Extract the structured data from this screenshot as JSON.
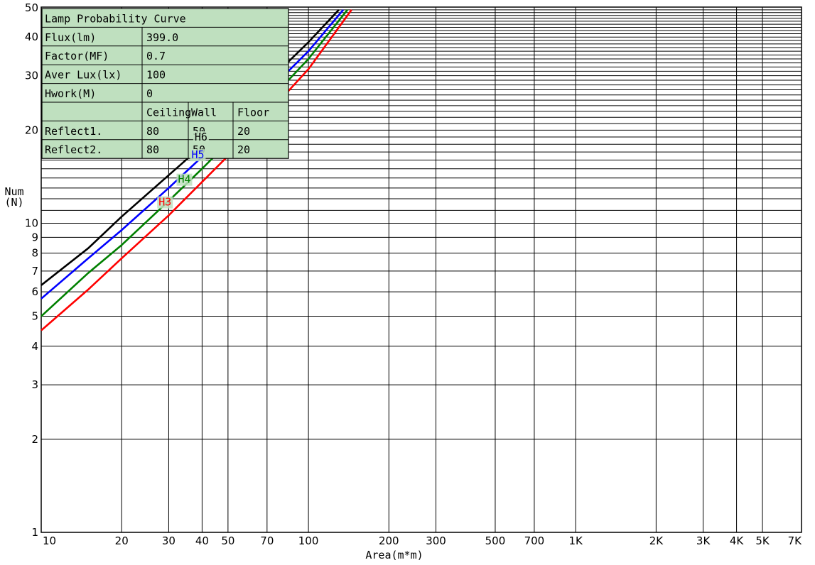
{
  "chart_data": {
    "type": "line",
    "x_scale": "log",
    "y_scale": "log",
    "xlim": [
      10,
      7000
    ],
    "ylim": [
      1,
      50
    ],
    "grid": true,
    "xlabel": "Area(m*m)",
    "ylabel_line1": "Num",
    "ylabel_line2": "(N)",
    "x_ticks": [
      {
        "value": 10,
        "label": "10"
      },
      {
        "value": 20,
        "label": "20"
      },
      {
        "value": 30,
        "label": "30"
      },
      {
        "value": 40,
        "label": "40"
      },
      {
        "value": 50,
        "label": "50"
      },
      {
        "value": 70,
        "label": "70"
      },
      {
        "value": 100,
        "label": "100"
      },
      {
        "value": 200,
        "label": "200"
      },
      {
        "value": 300,
        "label": "300"
      },
      {
        "value": 500,
        "label": "500"
      },
      {
        "value": 700,
        "label": "700"
      },
      {
        "value": 1000,
        "label": "1K"
      },
      {
        "value": 2000,
        "label": "2K"
      },
      {
        "value": 3000,
        "label": "3K"
      },
      {
        "value": 4000,
        "label": "4K"
      },
      {
        "value": 5000,
        "label": "5K"
      },
      {
        "value": 7000,
        "label": "7K"
      }
    ],
    "y_ticks": [
      {
        "value": 1,
        "label": "1"
      },
      {
        "value": 2,
        "label": "2"
      },
      {
        "value": 3,
        "label": "3"
      },
      {
        "value": 4,
        "label": "4"
      },
      {
        "value": 5,
        "label": "5"
      },
      {
        "value": 6,
        "label": "6"
      },
      {
        "value": 7,
        "label": "7"
      },
      {
        "value": 8,
        "label": "8"
      },
      {
        "value": 9,
        "label": "9"
      },
      {
        "value": 10,
        "label": "10"
      },
      {
        "value": 20,
        "label": "20"
      },
      {
        "value": 30,
        "label": "30"
      },
      {
        "value": 40,
        "label": "40"
      },
      {
        "value": 50,
        "label": "50"
      }
    ],
    "series": [
      {
        "name": "H6",
        "color": "#000000",
        "label_at": [
          37.5,
          18.5
        ],
        "x": [
          10,
          15,
          20,
          30,
          40,
          50,
          70,
          100,
          130
        ],
        "y": [
          6.3,
          8.3,
          10.5,
          14.3,
          17.8,
          21.5,
          28.5,
          38.5,
          49
        ]
      },
      {
        "name": "H5",
        "color": "#0000ff",
        "label_at": [
          36.5,
          16.2
        ],
        "x": [
          10,
          15,
          20,
          30,
          40,
          50,
          70,
          100,
          135
        ],
        "y": [
          5.7,
          7.7,
          9.5,
          13,
          16.4,
          19.8,
          26.5,
          36,
          49
        ]
      },
      {
        "name": "H4",
        "color": "#008000",
        "label_at": [
          32.5,
          13.5
        ],
        "x": [
          10,
          15,
          20,
          30,
          40,
          50,
          70,
          100,
          140
        ],
        "y": [
          5.0,
          6.9,
          8.5,
          11.8,
          15,
          18.2,
          24.5,
          34,
          49
        ]
      },
      {
        "name": "H3",
        "color": "#ff0000",
        "label_at": [
          27.5,
          11.4
        ],
        "x": [
          10,
          15,
          20,
          30,
          40,
          50,
          70,
          100,
          145
        ],
        "y": [
          4.5,
          6.1,
          7.7,
          10.6,
          13.6,
          16.5,
          22.5,
          31.5,
          49
        ]
      }
    ]
  },
  "info_table": {
    "title": "Lamp Probability Curve",
    "rows": [
      {
        "label": "Flux(lm)",
        "value": "399.0"
      },
      {
        "label": "Factor(MF)",
        "value": "0.7"
      },
      {
        "label": "Aver Lux(lx)",
        "value": "100"
      },
      {
        "label": "Hwork(M)",
        "value": "0"
      }
    ],
    "reflect_header": [
      "Ceiling",
      "Wall",
      "Floor"
    ],
    "reflect_rows": [
      {
        "label": "Reflect1.",
        "values": [
          "80",
          "50",
          "20"
        ]
      },
      {
        "label": "Reflect2.",
        "values": [
          "80",
          "50",
          "20"
        ]
      }
    ]
  },
  "colors": {
    "table_bg": "#bfe0bf",
    "grid": "#000000"
  }
}
